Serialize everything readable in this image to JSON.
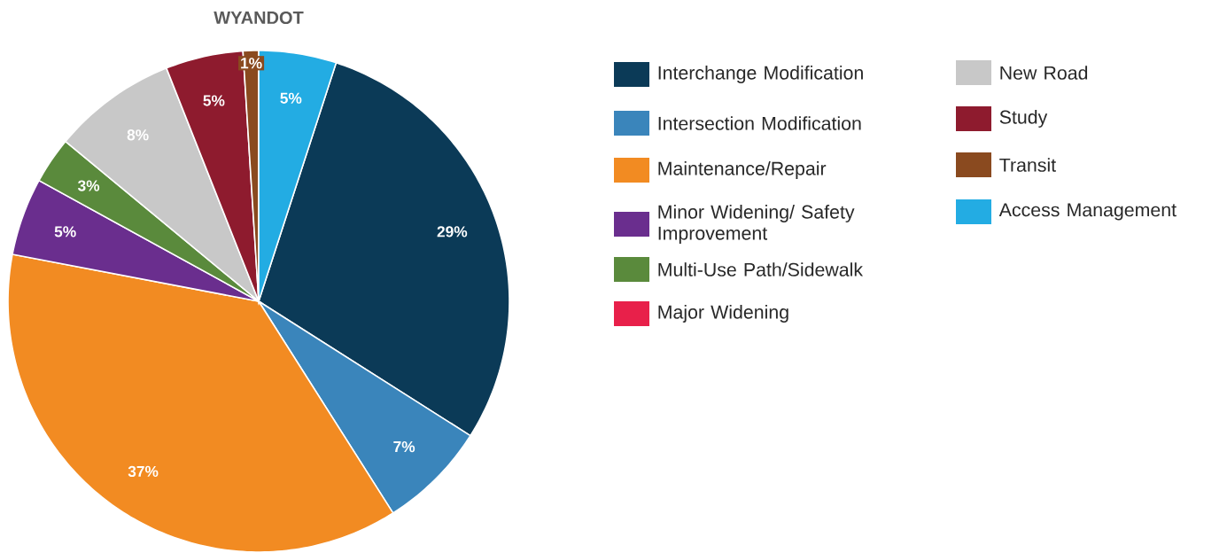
{
  "chart_data": {
    "type": "pie",
    "title": "WYANDOT",
    "categories": [
      "Interchange Modification",
      "Intersection Modification",
      "Maintenance/Repair",
      "Minor Widening/ Safety Improvement",
      "Multi-Use Path/Sidewalk",
      "Major Widening",
      "New Road",
      "Study",
      "Transit",
      "Access Management"
    ],
    "values": [
      29,
      7,
      37,
      5,
      3,
      0,
      8,
      5,
      1,
      5
    ],
    "value_labels": [
      "29%",
      "7%",
      "37%",
      "5%",
      "3%",
      null,
      "8%",
      "5%",
      "1%",
      "5%"
    ],
    "colors": [
      "#0b3a57",
      "#3a85bb",
      "#f28b22",
      "#6a2e8e",
      "#5a8a3c",
      "#e8204a",
      "#c8c8c8",
      "#8e1b2e",
      "#8a4a1f",
      "#23ace3"
    ],
    "legend": "right"
  }
}
